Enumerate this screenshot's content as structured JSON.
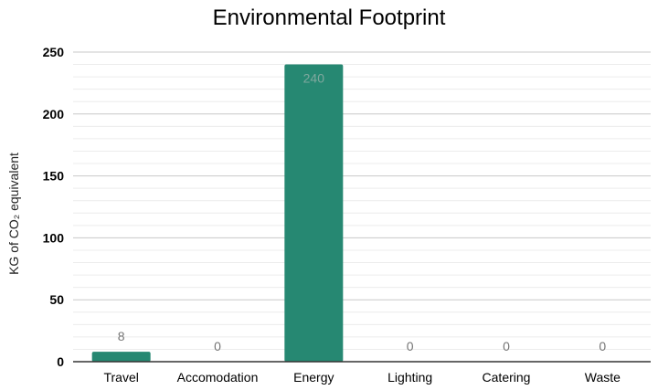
{
  "chart_data": {
    "type": "bar",
    "title": "Environmental Footprint",
    "xlabel": "",
    "ylabel": "KG of CO₂ equivalent",
    "categories": [
      "Travel",
      "Accomodation",
      "Energy",
      "Lighting",
      "Catering",
      "Waste"
    ],
    "values": [
      8,
      0,
      240,
      0,
      0,
      0
    ],
    "data_labels": [
      "8",
      "0",
      "240",
      "0",
      "0",
      "0"
    ],
    "ylim": [
      0,
      250
    ],
    "yticks": [
      "0",
      "50",
      "100",
      "150",
      "200",
      "250"
    ],
    "ytick_values": [
      0,
      50,
      100,
      150,
      200,
      250
    ],
    "minor_step": 10,
    "grid": true,
    "legend": "none",
    "colors": {
      "bar": "#268872",
      "major_grid": "#c8c8c8",
      "minor_grid": "#ececec",
      "axis": "#333333",
      "label_outside": "#757575",
      "label_inside": "#7fa89e",
      "text": "#000000"
    }
  }
}
